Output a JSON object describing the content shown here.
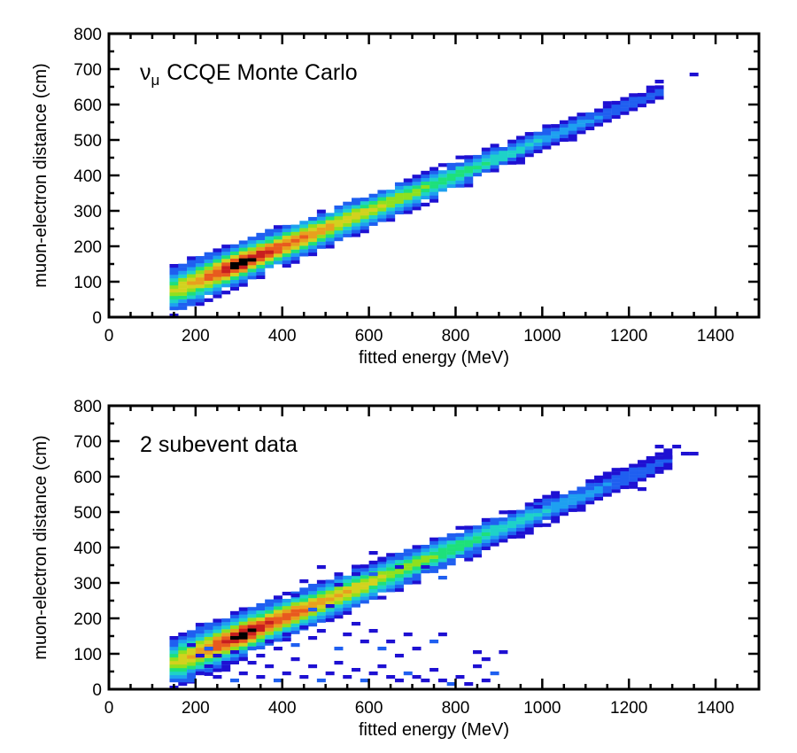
{
  "chart_data": [
    {
      "type": "heatmap",
      "title": "CCQE Monte Carlo",
      "title_symbol": "ν",
      "title_symbol_sub": "μ",
      "xlabel": "fitted energy (MeV)",
      "ylabel": "muon-electron distance (cm)",
      "xlim": [
        0,
        1500
      ],
      "ylim": [
        0,
        800
      ],
      "xticks": [
        0,
        200,
        400,
        600,
        800,
        1000,
        1200,
        1400
      ],
      "yticks": [
        0,
        100,
        200,
        300,
        400,
        500,
        600,
        700,
        800
      ],
      "bin_width_energy": 20,
      "bin_width_distance": 10,
      "band": {
        "energy_start": 140,
        "energy_end": 1280,
        "slope_cm_per_mev": 0.5,
        "intercept_cm": 0,
        "halfwidth_cm_at_start": 65,
        "halfwidth_cm_at_end": 20,
        "peak_energy": 300
      },
      "isolated_bins": [
        [
          1340,
          680
        ],
        [
          1260,
          660
        ]
      ],
      "outlier_bins": [],
      "colorscale": [
        "#1e10d2",
        "#1f5ff0",
        "#1ea0f0",
        "#1ed2c8",
        "#1ee07a",
        "#8fe01e",
        "#d2d21e",
        "#e8a01e",
        "#e85a1e",
        "#c81e1e",
        "#000000"
      ]
    },
    {
      "type": "heatmap",
      "title": "2 subevent data",
      "xlabel": "fitted energy (MeV)",
      "ylabel": "muon-electron distance (cm)",
      "xlim": [
        0,
        1500
      ],
      "ylim": [
        0,
        800
      ],
      "xticks": [
        0,
        200,
        400,
        600,
        800,
        1000,
        1200,
        1400
      ],
      "yticks": [
        0,
        100,
        200,
        300,
        400,
        500,
        600,
        700,
        800
      ],
      "bin_width_energy": 20,
      "bin_width_distance": 10,
      "band": {
        "energy_start": 140,
        "energy_end": 1300,
        "slope_cm_per_mev": 0.5,
        "intercept_cm": 0,
        "halfwidth_cm_at_start": 70,
        "halfwidth_cm_at_end": 25,
        "peak_energy": 300
      },
      "isolated_bins": [
        [
          1260,
          680
        ],
        [
          1280,
          650
        ],
        [
          1300,
          680
        ],
        [
          1320,
          660
        ],
        [
          1340,
          660
        ],
        [
          1240,
          640
        ],
        [
          1220,
          560
        ],
        [
          980,
          510
        ]
      ],
      "outlier_bins": [
        [
          180,
          20
        ],
        [
          200,
          40
        ],
        [
          220,
          60
        ],
        [
          240,
          30
        ],
        [
          260,
          50
        ],
        [
          280,
          20
        ],
        [
          300,
          40
        ],
        [
          320,
          70
        ],
        [
          340,
          30
        ],
        [
          360,
          60
        ],
        [
          380,
          20
        ],
        [
          400,
          40
        ],
        [
          420,
          80
        ],
        [
          440,
          30
        ],
        [
          460,
          60
        ],
        [
          480,
          20
        ],
        [
          500,
          40
        ],
        [
          520,
          70
        ],
        [
          540,
          30
        ],
        [
          560,
          50
        ],
        [
          580,
          20
        ],
        [
          600,
          40
        ],
        [
          620,
          60
        ],
        [
          640,
          30
        ],
        [
          660,
          20
        ],
        [
          680,
          40
        ],
        [
          700,
          30
        ],
        [
          720,
          20
        ],
        [
          740,
          50
        ],
        [
          760,
          20
        ],
        [
          780,
          10
        ],
        [
          800,
          30
        ],
        [
          820,
          10
        ],
        [
          840,
          60
        ],
        [
          860,
          20
        ],
        [
          880,
          40
        ],
        [
          900,
          100
        ],
        [
          840,
          100
        ],
        [
          860,
          80
        ],
        [
          760,
          150
        ],
        [
          740,
          130
        ],
        [
          700,
          110
        ],
        [
          680,
          150
        ],
        [
          660,
          90
        ],
        [
          640,
          130
        ],
        [
          620,
          110
        ],
        [
          600,
          160
        ],
        [
          580,
          130
        ],
        [
          560,
          180
        ],
        [
          540,
          150
        ],
        [
          520,
          110
        ],
        [
          500,
          190
        ],
        [
          480,
          160
        ],
        [
          460,
          140
        ],
        [
          440,
          170
        ],
        [
          420,
          120
        ],
        [
          400,
          150
        ],
        [
          380,
          110
        ],
        [
          360,
          130
        ],
        [
          340,
          90
        ],
        [
          320,
          110
        ],
        [
          300,
          80
        ],
        [
          280,
          100
        ],
        [
          260,
          70
        ],
        [
          240,
          90
        ],
        [
          220,
          110
        ],
        [
          200,
          90
        ],
        [
          180,
          120
        ],
        [
          520,
          290
        ],
        [
          560,
          320
        ],
        [
          600,
          320
        ],
        [
          620,
          360
        ],
        [
          600,
          380
        ],
        [
          660,
          340
        ],
        [
          720,
          340
        ],
        [
          760,
          310
        ],
        [
          480,
          340
        ],
        [
          440,
          300
        ],
        [
          420,
          260
        ],
        [
          500,
          230
        ],
        [
          460,
          220
        ]
      ],
      "colorscale": [
        "#1e10d2",
        "#1f5ff0",
        "#1ea0f0",
        "#1ed2c8",
        "#1ee07a",
        "#8fe01e",
        "#d2d21e",
        "#e8a01e",
        "#e85a1e",
        "#c81e1e",
        "#000000"
      ]
    }
  ]
}
